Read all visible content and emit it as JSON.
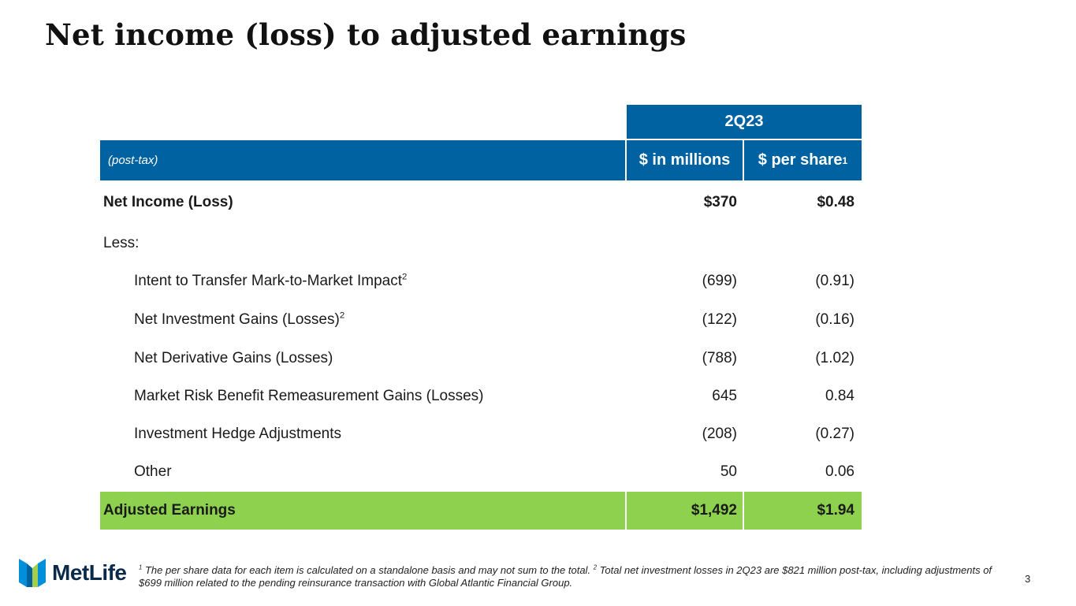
{
  "title": "Net income (loss) to adjusted earnings",
  "table": {
    "period": "2Q23",
    "basis_label": "(post-tax)",
    "col1_header": "$ in millions",
    "col2_header": "$ per share",
    "col2_header_sup": "1",
    "rows": [
      {
        "label": "Net Income (Loss)",
        "sup": "",
        "millions": "$370",
        "per_share": "$0.48"
      },
      {
        "label": "Less:",
        "sup": "",
        "millions": "",
        "per_share": ""
      },
      {
        "label": "Intent to Transfer Mark-to-Market Impact",
        "sup": "2",
        "millions": "(699)",
        "per_share": "(0.91)"
      },
      {
        "label": "Net Investment Gains (Losses)",
        "sup": "2",
        "millions": "(122)",
        "per_share": "(0.16)"
      },
      {
        "label": "Net Derivative Gains (Losses)",
        "sup": "",
        "millions": "(788)",
        "per_share": "(1.02)"
      },
      {
        "label": "Market Risk Benefit Remeasurement Gains (Losses)",
        "sup": "",
        "millions": "645",
        "per_share": "0.84"
      },
      {
        "label": "Investment Hedge Adjustments",
        "sup": "",
        "millions": "(208)",
        "per_share": "(0.27)"
      },
      {
        "label": "Other",
        "sup": "",
        "millions": "50",
        "per_share": "0.06"
      }
    ],
    "total": {
      "label": "Adjusted Earnings",
      "millions": "$1,492",
      "per_share": "$1.94"
    }
  },
  "footnote": {
    "sup1": "1",
    "text1": " The per share data for each item is calculated on a standalone basis and may not sum to the total. ",
    "sup2": "2",
    "text2": " Total net investment losses in 2Q23 are $821 million post-tax, including adjustments of $699 million related to the pending reinsurance transaction with Global Atlantic Financial Group."
  },
  "logo": {
    "text": "MetLife",
    "icon": "metlife-logo-icon"
  },
  "page_number": "3",
  "colors": {
    "header_blue": "#0062a0",
    "total_green": "#8dd14f"
  }
}
